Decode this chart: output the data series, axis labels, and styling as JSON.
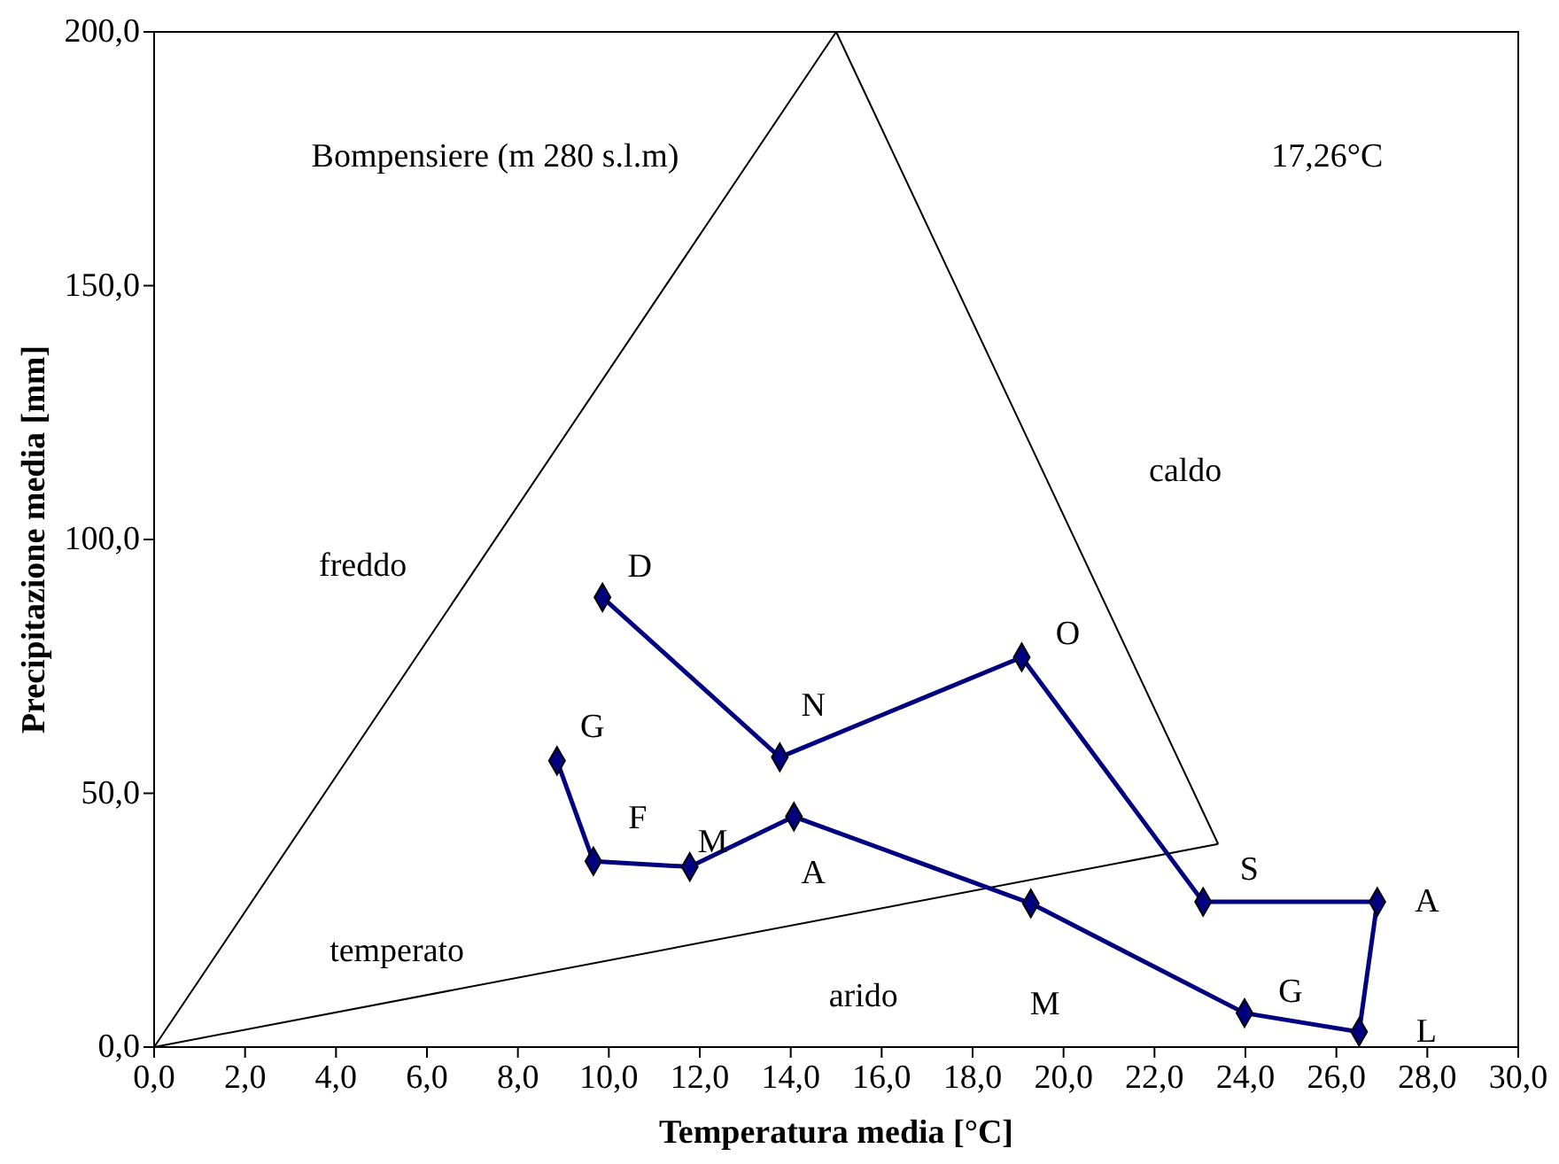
{
  "chart_data": {
    "type": "line",
    "xlabel": "Temperatura media [°C]",
    "ylabel": "Precipitazione media [mm]",
    "xlim": [
      0,
      30
    ],
    "xticks": [
      {
        "value": 0,
        "label": "0,0"
      },
      {
        "value": 2,
        "label": "2,0"
      },
      {
        "value": 4,
        "label": "4,0"
      },
      {
        "value": 6,
        "label": "6,0"
      },
      {
        "value": 8,
        "label": "8,0"
      },
      {
        "value": 10,
        "label": "10,0"
      },
      {
        "value": 12,
        "label": "12,0"
      },
      {
        "value": 14,
        "label": "14,0"
      },
      {
        "value": 16,
        "label": "16,0"
      },
      {
        "value": 18,
        "label": "18,0"
      },
      {
        "value": 20,
        "label": "20,0"
      },
      {
        "value": 22,
        "label": "22,0"
      },
      {
        "value": 24,
        "label": "24,0"
      },
      {
        "value": 26,
        "label": "26,0"
      },
      {
        "value": 28,
        "label": "28,0"
      },
      {
        "value": 30,
        "label": "30,0"
      }
    ],
    "ylim": [
      0,
      200
    ],
    "yticks": [
      {
        "value": 0,
        "label": "0,0"
      },
      {
        "value": 50,
        "label": "50,0"
      },
      {
        "value": 100,
        "label": "100,0"
      },
      {
        "value": 150,
        "label": "150,0"
      },
      {
        "value": 200,
        "label": "200,0"
      }
    ],
    "grid": false,
    "series": [
      {
        "color": "#000000",
        "marker": "none",
        "x": [
          0,
          15
        ],
        "values": [
          0,
          200
        ]
      },
      {
        "color": "#000000",
        "marker": "none",
        "x": [
          15,
          23.4
        ],
        "values": [
          200,
          40
        ]
      },
      {
        "color": "#000000",
        "marker": "none",
        "x": [
          0,
          23.4
        ],
        "values": [
          0,
          40
        ]
      },
      {
        "color": "#000080",
        "marker": "diamond",
        "x": [
          8.86,
          9.66,
          11.78,
          14.07,
          19.28,
          23.98,
          26.5,
          26.9,
          23.07,
          19.08,
          13.76,
          9.86
        ],
        "values": [
          56.4,
          36.6,
          35.5,
          45.4,
          28.3,
          6.7,
          3.0,
          28.6,
          28.6,
          76.8,
          57.1,
          88.6
        ],
        "value_labels": [
          "G",
          "F",
          "M",
          "A",
          "M",
          "G",
          "L",
          "A",
          "S",
          "O",
          "N",
          "D"
        ]
      }
    ],
    "annotations": [
      "Bompensiere (m 280 s.l.m)",
      "17,26°C",
      "freddo",
      "caldo",
      "temperato",
      "arido"
    ]
  }
}
